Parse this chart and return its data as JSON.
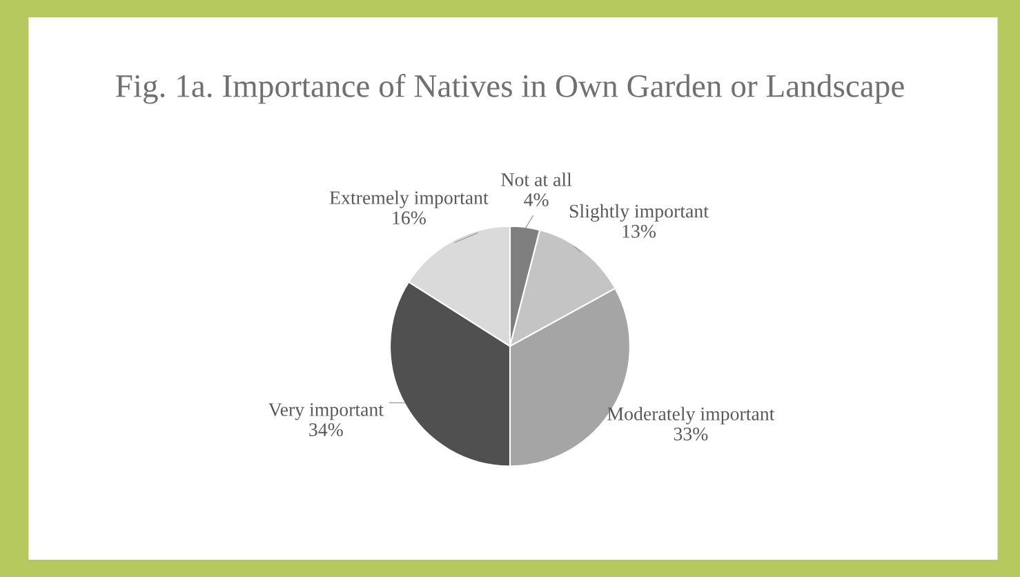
{
  "chart_data": {
    "type": "pie",
    "title": "Fig. 1a. Importance of Natives in Own Garden or Landscape",
    "categories": [
      "Not at all",
      "Slightly important",
      "Moderately important",
      "Very important",
      "Extremely important"
    ],
    "values": [
      4,
      13,
      33,
      34,
      16
    ],
    "colors": [
      "#7f7f7f",
      "#c4c4c4",
      "#a5a5a5",
      "#505050",
      "#dadada"
    ],
    "value_labels": [
      "4%",
      "13%",
      "33%",
      "34%",
      "16%"
    ],
    "legend": false
  }
}
